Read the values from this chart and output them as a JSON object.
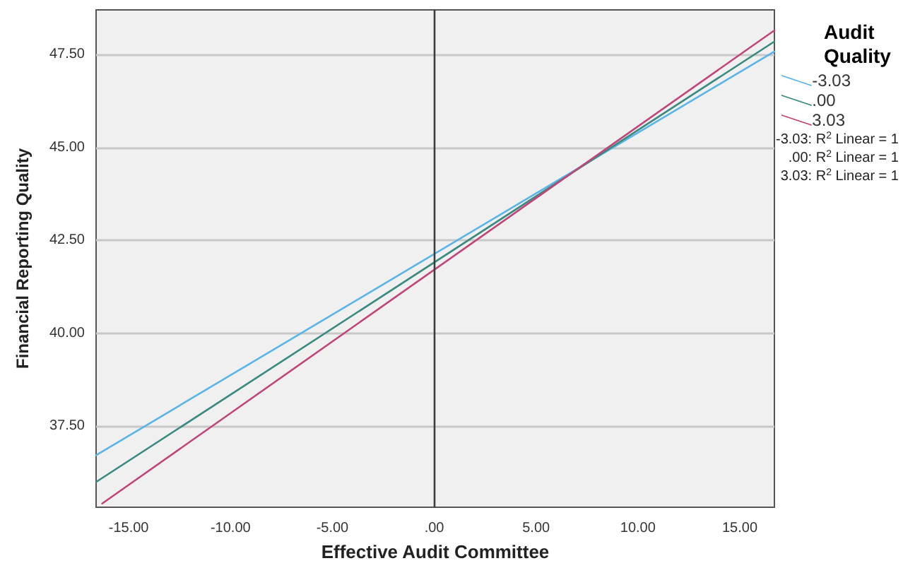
{
  "chart_data": {
    "type": "line",
    "xlabel": "Effective Audit Committee",
    "ylabel": "Financial Reporting Quality",
    "legend_title": "Audit Quality",
    "series": [
      {
        "name": "-3.03",
        "color": "#5ab4e8",
        "x": [
          -16.6,
          16.7
        ],
        "values": [
          36.72,
          47.58
        ]
      },
      {
        "name": ".00",
        "color": "#3a8a7f",
        "x": [
          -16.6,
          16.7
        ],
        "values": [
          36.0,
          47.85
        ]
      },
      {
        "name": "3.03",
        "color": "#c2457a",
        "x": [
          -16.3,
          16.7
        ],
        "values": [
          35.42,
          48.15
        ]
      }
    ],
    "xlim": [
      -16.6,
      16.7
    ],
    "xticks": [
      {
        "value": -15,
        "label": "-15.00"
      },
      {
        "value": -10,
        "label": "-10.00"
      },
      {
        "value": -5,
        "label": "-5.00"
      },
      {
        "value": 0,
        "label": ".00"
      },
      {
        "value": 5,
        "label": "5.00"
      },
      {
        "value": 10,
        "label": "10.00"
      },
      {
        "value": 15,
        "label": "15.00"
      }
    ],
    "ylim": [
      35.32,
      48.7
    ],
    "yticks": [
      {
        "value": 37.5,
        "label": "37.50"
      },
      {
        "value": 40,
        "label": "40.00"
      },
      {
        "value": 42.5,
        "label": "42.50"
      },
      {
        "value": 45,
        "label": "45.00"
      },
      {
        "value": 47.5,
        "label": "47.50"
      }
    ],
    "ref_lines": [
      {
        "axis": "x",
        "value": 0,
        "color": "#3c3c3c"
      }
    ],
    "annotations": [
      "-3.03: R$^{2}$ Linear = 1",
      ".00: R$^{2}$ Linear = 1",
      "3.03: R$^{2}$ Linear = 1"
    ],
    "grid": "y",
    "legend": "right",
    "marker": "none",
    "line_style": "solid"
  }
}
